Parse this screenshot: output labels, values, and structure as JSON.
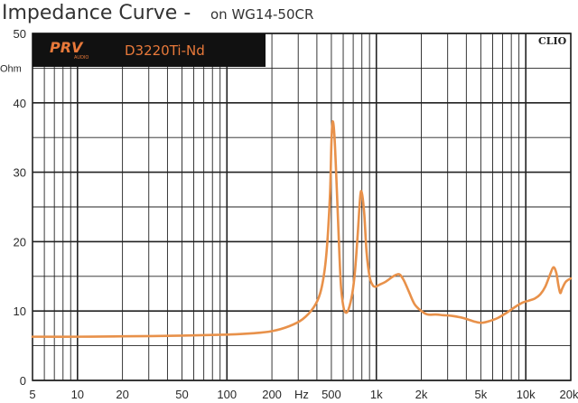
{
  "header": {
    "title": "Impedance Curve -",
    "subtitle": "on WG14-50CR"
  },
  "badge": {
    "brand": "PRV",
    "brand_sub": "AUDIO",
    "model": "D3220Ti-Nd",
    "background": "#111111",
    "text_color": "#e8793a"
  },
  "watermark": "CLIO",
  "colors": {
    "curve": "#e8914a",
    "grid": "#222222",
    "background": "#ffffff"
  },
  "chart_data": {
    "type": "line",
    "x_scale": "log",
    "xlim": [
      5,
      20000
    ],
    "ylim": [
      0,
      50
    ],
    "grid": true,
    "ylabel": "Ohm",
    "xlabel": "Hz",
    "y_ticks": [
      0,
      10,
      20,
      30,
      40,
      50
    ],
    "x_ticks": [
      {
        "value": 5,
        "label": "5"
      },
      {
        "value": 10,
        "label": "10"
      },
      {
        "value": 20,
        "label": "20"
      },
      {
        "value": 50,
        "label": "50"
      },
      {
        "value": 100,
        "label": "100"
      },
      {
        "value": 200,
        "label": "200"
      },
      {
        "value": 500,
        "label": "500"
      },
      {
        "value": 1000,
        "label": "1k"
      },
      {
        "value": 2000,
        "label": "2k"
      },
      {
        "value": 5000,
        "label": "5k"
      },
      {
        "value": 10000,
        "label": "10k"
      },
      {
        "value": 20000,
        "label": "20k"
      }
    ],
    "series": [
      {
        "x": [
          5,
          10,
          20,
          50,
          100,
          150,
          200,
          260,
          320,
          380,
          420,
          450,
          470,
          490,
          500,
          510,
          525,
          545,
          565,
          580,
          600,
          620,
          650,
          690,
          720,
          750,
          780,
          800,
          830,
          860,
          900,
          940,
          980,
          1050,
          1150,
          1300,
          1420,
          1520,
          1650,
          1800,
          2000,
          2200,
          2500,
          2800,
          3200,
          3800,
          4500,
          5000,
          5600,
          6500,
          7500,
          8500,
          9500,
          10500,
          11500,
          12500,
          13500,
          14500,
          15300,
          16000,
          16500,
          17000,
          17500,
          18500,
          20000
        ],
        "y": [
          6.3,
          6.3,
          6.35,
          6.45,
          6.6,
          6.8,
          7.1,
          7.8,
          8.8,
          10.5,
          12.5,
          15.8,
          20,
          27,
          34,
          37.3,
          35,
          27,
          18.5,
          13.5,
          10.8,
          9.8,
          10.2,
          12.5,
          15.8,
          21,
          26.5,
          27,
          24,
          18.5,
          15,
          13.8,
          13.5,
          13.8,
          14.2,
          15,
          15.3,
          14.5,
          12.8,
          11,
          10,
          9.5,
          9.5,
          9.4,
          9.3,
          9,
          8.5,
          8.3,
          8.5,
          9,
          9.8,
          10.6,
          11.2,
          11.5,
          11.8,
          12.4,
          13.5,
          15.2,
          16.3,
          15.5,
          13.8,
          12.6,
          13.2,
          14.2,
          14.7
        ]
      }
    ]
  }
}
